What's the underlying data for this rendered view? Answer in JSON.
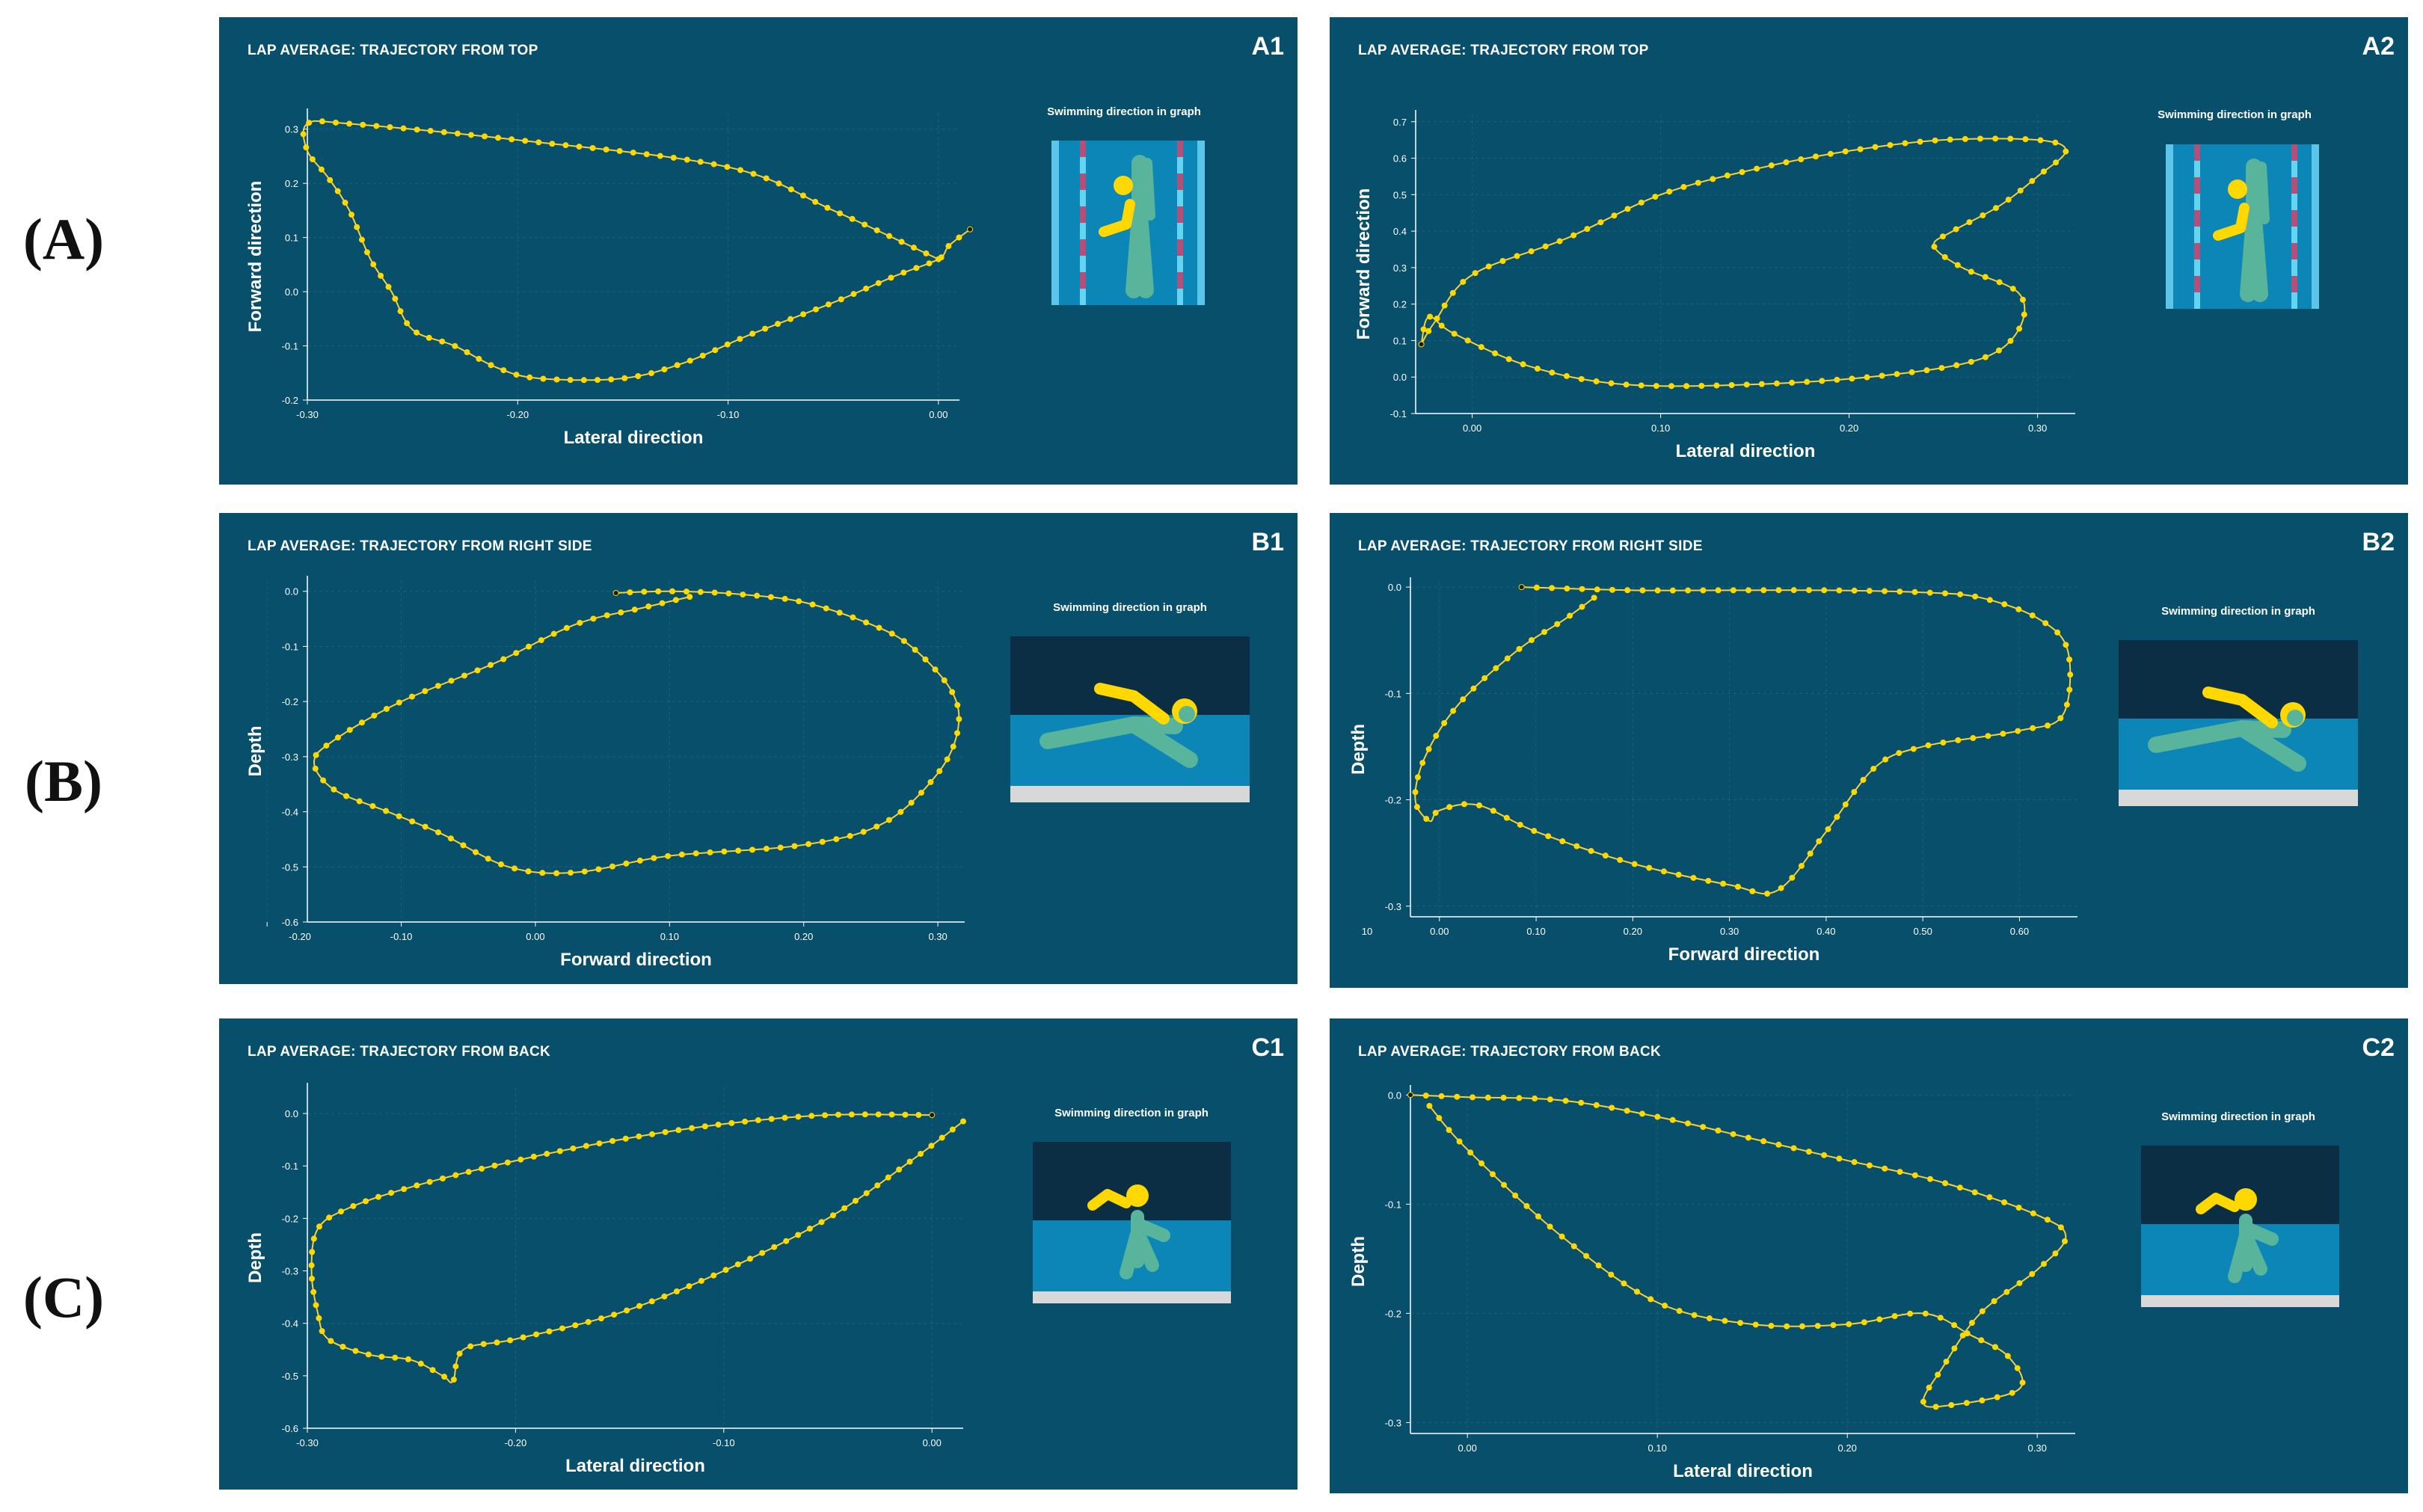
{
  "row_labels": [
    "(A)",
    "(B)",
    "(C)"
  ],
  "picture_caption": "Swimming direction in graph",
  "chart_data": [
    {
      "id": "A1",
      "type": "line",
      "title": "LAP AVERAGE: TRAJECTORY FROM TOP",
      "xlabel": "Lateral direction",
      "ylabel": "Forward direction",
      "xlim": [
        -0.3,
        0.01
      ],
      "ylim": [
        -0.2,
        0.33
      ],
      "xticks": [
        -0.3,
        -0.2,
        -0.1,
        0.0
      ],
      "xtick_labels": [
        "-0.30",
        "-0.20",
        "-0.10",
        "0.00"
      ],
      "yticks": [
        -0.2,
        -0.1,
        0.0,
        0.1,
        0.2,
        0.3
      ],
      "ytick_labels": [
        "-0.2",
        "-0.1",
        "0.0",
        "0.1",
        "0.2",
        "0.3"
      ],
      "series": [
        {
          "name": "trajectory",
          "points": [
            [
              0.015,
              0.115
            ],
            [
              0.005,
              0.085
            ],
            [
              0,
              0.06
            ],
            [
              -0.02,
              0.03
            ],
            [
              -0.05,
              -0.02
            ],
            [
              -0.09,
              -0.08
            ],
            [
              -0.12,
              -0.13
            ],
            [
              -0.15,
              -0.16
            ],
            [
              -0.19,
              -0.16
            ],
            [
              -0.21,
              -0.14
            ],
            [
              -0.23,
              -0.1
            ],
            [
              -0.25,
              -0.07
            ],
            [
              -0.26,
              0.0
            ],
            [
              -0.27,
              0.06
            ],
            [
              -0.28,
              0.15
            ],
            [
              -0.29,
              0.21
            ],
            [
              -0.3,
              0.26
            ],
            [
              -0.3,
              0.31
            ],
            [
              -0.28,
              0.31
            ],
            [
              -0.2,
              0.28
            ],
            [
              -0.1,
              0.23
            ],
            [
              -0.05,
              0.15
            ],
            [
              0,
              0.06
            ]
          ]
        }
      ],
      "picture": "top"
    },
    {
      "id": "A2",
      "type": "line",
      "title": "LAP AVERAGE: TRAJECTORY FROM TOP",
      "xlabel": "Lateral direction",
      "ylabel": "Forward direction",
      "xlim": [
        -0.03,
        0.32
      ],
      "ylim": [
        -0.1,
        0.72
      ],
      "xticks": [
        0.0,
        0.1,
        0.2,
        0.3
      ],
      "xtick_labels": [
        "0.00",
        "0.10",
        "0.20",
        "0.30"
      ],
      "yticks": [
        -0.1,
        0.0,
        0.1,
        0.2,
        0.3,
        0.4,
        0.5,
        0.6,
        0.7
      ],
      "ytick_labels": [
        "-0.1",
        "0.0",
        "0.1",
        "0.2",
        "0.3",
        "0.4",
        "0.5",
        "0.6",
        "0.7"
      ],
      "series": [
        {
          "name": "trajectory",
          "points": [
            [
              -0.027,
              0.09
            ],
            [
              -0.02,
              0.15
            ],
            [
              0,
              0.28
            ],
            [
              0.05,
              0.38
            ],
            [
              0.1,
              0.5
            ],
            [
              0.15,
              0.57
            ],
            [
              0.2,
              0.62
            ],
            [
              0.25,
              0.65
            ],
            [
              0.3,
              0.65
            ],
            [
              0.315,
              0.62
            ],
            [
              0.3,
              0.55
            ],
            [
              0.28,
              0.47
            ],
            [
              0.255,
              0.4
            ],
            [
              0.245,
              0.36
            ],
            [
              0.26,
              0.3
            ],
            [
              0.29,
              0.23
            ],
            [
              0.29,
              0.13
            ],
            [
              0.27,
              0.05
            ],
            [
              0.22,
              0.005
            ],
            [
              0.15,
              -0.02
            ],
            [
              0.08,
              -0.02
            ],
            [
              0.03,
              0.03
            ],
            [
              -0.01,
              0.12
            ],
            [
              -0.023,
              0.165
            ],
            [
              -0.027,
              0.09
            ]
          ]
        }
      ],
      "picture": "top"
    },
    {
      "id": "B1",
      "type": "line",
      "title": "LAP AVERAGE: TRAJECTORY FROM RIGHT SIDE",
      "xlabel": "Forward direction",
      "ylabel": "Depth",
      "xlim": [
        -0.17,
        0.32
      ],
      "ylim": [
        -0.6,
        0.02
      ],
      "xticks": [
        -0.2,
        -0.1,
        0.0,
        0.1,
        0.2,
        0.3
      ],
      "xtick_labels": [
        "-0.20",
        "-0.10",
        "0.00",
        "0.10",
        "0.20",
        "0.30"
      ],
      "yticks": [
        -0.6,
        -0.5,
        -0.4,
        -0.3,
        -0.2,
        -0.1,
        0.0
      ],
      "ytick_labels": [
        "-0.6",
        "-0.5",
        "-0.4",
        "-0.3",
        "-0.2",
        "-0.1",
        "0.0"
      ],
      "series": [
        {
          "name": "trajectory",
          "points": [
            [
              0.06,
              -0.003
            ],
            [
              0.1,
              0.0
            ],
            [
              0.15,
              -0.005
            ],
            [
              0.2,
              -0.02
            ],
            [
              0.25,
              -0.06
            ],
            [
              0.28,
              -0.1
            ],
            [
              0.31,
              -0.18
            ],
            [
              0.315,
              -0.25
            ],
            [
              0.3,
              -0.33
            ],
            [
              0.26,
              -0.42
            ],
            [
              0.2,
              -0.46
            ],
            [
              0.1,
              -0.48
            ],
            [
              0.03,
              -0.51
            ],
            [
              -0.02,
              -0.5
            ],
            [
              -0.07,
              -0.44
            ],
            [
              -0.11,
              -0.4
            ],
            [
              -0.15,
              -0.36
            ],
            [
              -0.165,
              -0.31
            ],
            [
              -0.15,
              -0.27
            ],
            [
              -0.1,
              -0.2
            ],
            [
              -0.03,
              -0.13
            ],
            [
              0.03,
              -0.06
            ],
            [
              0.08,
              -0.03
            ],
            [
              0.115,
              -0.01
            ]
          ]
        }
      ],
      "picture": "side"
    },
    {
      "id": "B2",
      "type": "line",
      "title": "LAP AVERAGE: TRAJECTORY FROM RIGHT SIDE",
      "xlabel": "Forward direction",
      "ylabel": "Depth",
      "xlim": [
        -0.03,
        0.66
      ],
      "ylim": [
        -0.31,
        0.005
      ],
      "xticks": [
        0.0,
        0.1,
        0.2,
        0.3,
        0.4,
        0.5,
        0.6
      ],
      "xtick_labels": [
        "0.00",
        "0.10",
        "0.20",
        "0.30",
        "0.40",
        "0.50",
        "0.60"
      ],
      "yticks": [
        -0.3,
        -0.2,
        -0.1,
        0.0
      ],
      "ytick_labels": [
        "-0.3",
        "-0.2",
        "-0.1",
        "0.0"
      ],
      "series": [
        {
          "name": "trajectory",
          "points": [
            [
              0.085,
              0.0
            ],
            [
              0.2,
              -0.003
            ],
            [
              0.3,
              -0.003
            ],
            [
              0.4,
              -0.003
            ],
            [
              0.5,
              -0.005
            ],
            [
              0.56,
              -0.01
            ],
            [
              0.62,
              -0.03
            ],
            [
              0.65,
              -0.06
            ],
            [
              0.645,
              -0.12
            ],
            [
              0.6,
              -0.135
            ],
            [
              0.5,
              -0.15
            ],
            [
              0.45,
              -0.17
            ],
            [
              0.4,
              -0.23
            ],
            [
              0.35,
              -0.285
            ],
            [
              0.3,
              -0.28
            ],
            [
              0.2,
              -0.26
            ],
            [
              0.1,
              -0.23
            ],
            [
              0.04,
              -0.205
            ],
            [
              0.0,
              -0.21
            ],
            [
              -0.01,
              -0.22
            ],
            [
              -0.025,
              -0.2
            ],
            [
              -0.015,
              -0.16
            ],
            [
              0.02,
              -0.11
            ],
            [
              0.08,
              -0.06
            ],
            [
              0.13,
              -0.03
            ],
            [
              0.16,
              -0.01
            ]
          ]
        }
      ],
      "extra_tick_label": "10",
      "picture": "side"
    },
    {
      "id": "C1",
      "type": "line",
      "title": "LAP AVERAGE: TRAJECTORY FROM BACK",
      "xlabel": "Lateral direction",
      "ylabel": "Depth",
      "xlim": [
        -0.3,
        0.015
      ],
      "ylim": [
        -0.6,
        0.05
      ],
      "xticks": [
        -0.3,
        -0.2,
        -0.1,
        0.0
      ],
      "xtick_labels": [
        "-0.30",
        "-0.20",
        "-0.10",
        "0.00"
      ],
      "yticks": [
        -0.6,
        -0.4,
        -0.2,
        0.0
      ],
      "ytick_labels": [
        "-0.6",
        "-0.4",
        "-0.2",
        "0.0"
      ],
      "ytick_minor": [
        -0.5,
        -0.3,
        -0.1
      ],
      "ytick_minor_labels": [
        "-0.5",
        "-0.3",
        "-0.1"
      ],
      "series": [
        {
          "name": "trajectory",
          "points": [
            [
              0.0,
              -0.003
            ],
            [
              -0.05,
              -0.003
            ],
            [
              -0.1,
              -0.02
            ],
            [
              -0.15,
              -0.05
            ],
            [
              -0.2,
              -0.09
            ],
            [
              -0.25,
              -0.14
            ],
            [
              -0.28,
              -0.18
            ],
            [
              -0.295,
              -0.22
            ],
            [
              -0.298,
              -0.3
            ],
            [
              -0.295,
              -0.38
            ],
            [
              -0.29,
              -0.43
            ],
            [
              -0.27,
              -0.46
            ],
            [
              -0.25,
              -0.47
            ],
            [
              -0.235,
              -0.5
            ],
            [
              -0.23,
              -0.51
            ],
            [
              -0.225,
              -0.45
            ],
            [
              -0.2,
              -0.43
            ],
            [
              -0.15,
              -0.38
            ],
            [
              -0.1,
              -0.3
            ],
            [
              -0.05,
              -0.2
            ],
            [
              -0.01,
              -0.09
            ],
            [
              0.015,
              -0.015
            ]
          ]
        }
      ],
      "picture": "back"
    },
    {
      "id": "C2",
      "type": "line",
      "title": "LAP AVERAGE: TRAJECTORY FROM BACK",
      "xlabel": "Lateral direction",
      "ylabel": "Depth",
      "xlim": [
        -0.03,
        0.32
      ],
      "ylim": [
        -0.31,
        0.005
      ],
      "xticks": [
        0.0,
        0.1,
        0.2,
        0.3
      ],
      "xtick_labels": [
        "0.00",
        "0.10",
        "0.20",
        "0.30"
      ],
      "yticks": [
        -0.3,
        -0.2,
        -0.1,
        0.0
      ],
      "ytick_labels": [
        "-0.3",
        "-0.2",
        "-0.1",
        "0.0"
      ],
      "series": [
        {
          "name": "trajectory",
          "points": [
            [
              -0.03,
              0.0
            ],
            [
              0.0,
              -0.002
            ],
            [
              0.05,
              -0.005
            ],
            [
              0.1,
              -0.02
            ],
            [
              0.15,
              -0.04
            ],
            [
              0.2,
              -0.06
            ],
            [
              0.25,
              -0.08
            ],
            [
              0.3,
              -0.11
            ],
            [
              0.315,
              -0.13
            ],
            [
              0.3,
              -0.16
            ],
            [
              0.27,
              -0.2
            ],
            [
              0.25,
              -0.25
            ],
            [
              0.24,
              -0.28
            ],
            [
              0.25,
              -0.285
            ],
            [
              0.29,
              -0.27
            ],
            [
              0.285,
              -0.24
            ],
            [
              0.265,
              -0.22
            ],
            [
              0.24,
              -0.2
            ],
            [
              0.2,
              -0.21
            ],
            [
              0.15,
              -0.21
            ],
            [
              0.1,
              -0.19
            ],
            [
              0.05,
              -0.13
            ],
            [
              0.0,
              -0.05
            ],
            [
              -0.02,
              -0.01
            ]
          ]
        }
      ],
      "picture": "back"
    }
  ]
}
